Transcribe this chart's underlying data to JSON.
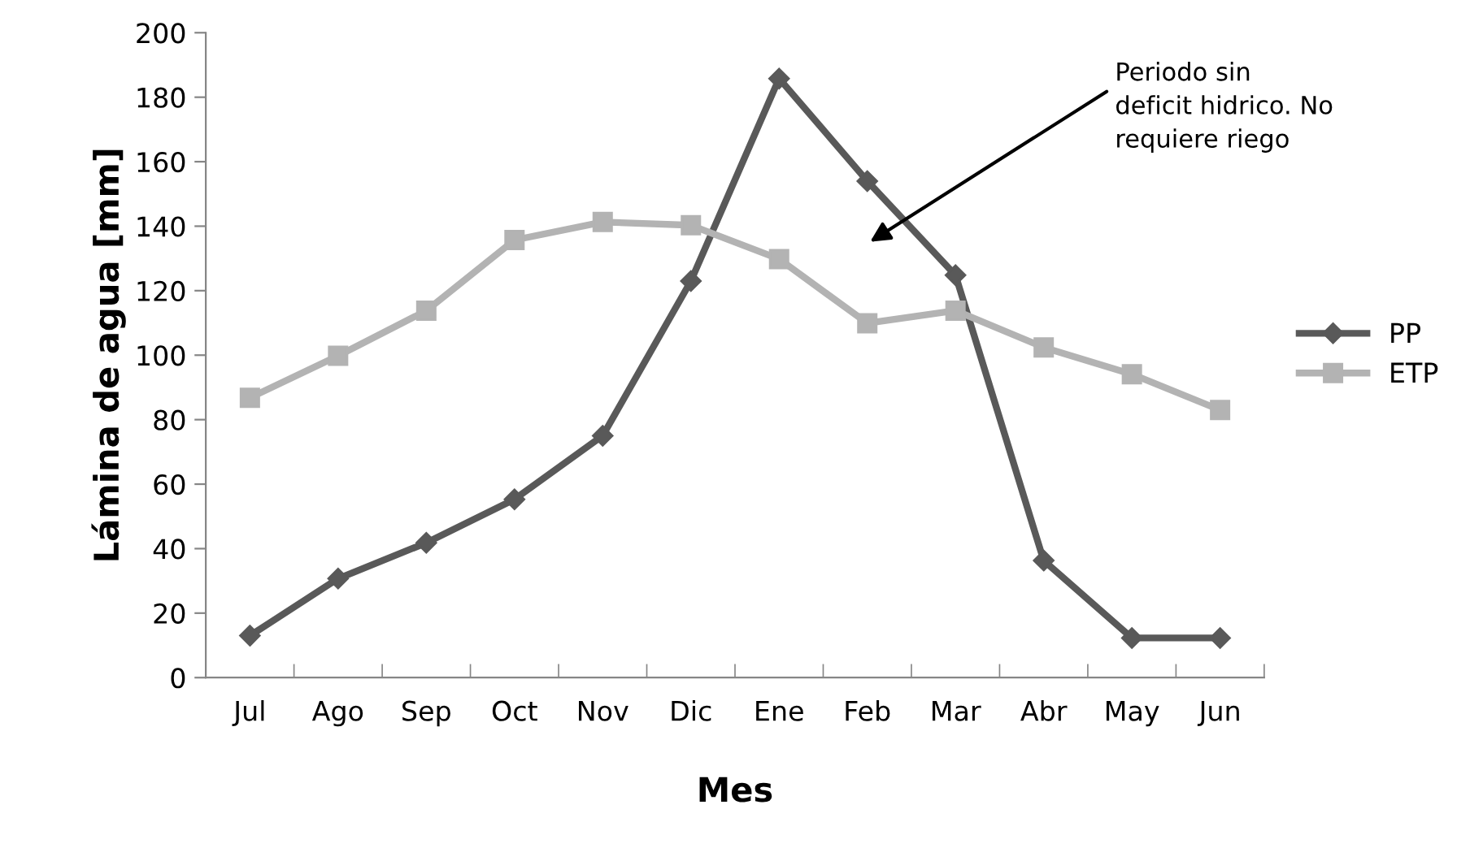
{
  "chart_data": {
    "type": "line",
    "xlabel": "Mes",
    "ylabel": "Lámina de agua [mm]",
    "categories": [
      "Jul",
      "Ago",
      "Sep",
      "Oct",
      "Nov",
      "Dic",
      "Ene",
      "Feb",
      "Mar",
      "Abr",
      "May",
      "Jun"
    ],
    "series": [
      {
        "name": "PP",
        "color": "#595959",
        "marker": "diamond",
        "values": [
          13,
          30.7,
          41.8,
          55.3,
          75,
          123,
          185.8,
          154,
          124.8,
          36.3,
          12.3,
          12.3
        ]
      },
      {
        "name": "ETP",
        "color": "#b3b3b3",
        "marker": "square",
        "values": [
          86.8,
          99.8,
          113.8,
          135.7,
          141.3,
          140.3,
          129.8,
          109.9,
          113.8,
          102.4,
          94.1,
          83
        ]
      }
    ],
    "ylim": [
      0,
      200
    ],
    "yticks": [
      0,
      20,
      40,
      60,
      80,
      100,
      120,
      140,
      160,
      180,
      200
    ],
    "grid": false,
    "legend": "right",
    "annotations": [
      "Periodo sin\ndeficit hidrico. No\nrequiere riego"
    ]
  }
}
